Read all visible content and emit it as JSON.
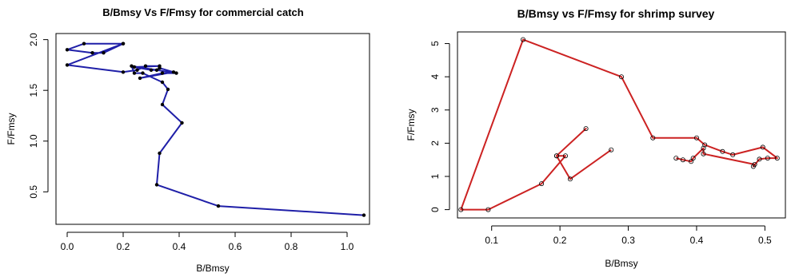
{
  "chart_data": [
    {
      "type": "line",
      "title": "B/Bmsy Vs F/Fmsy for commercial catch",
      "xlabel": "B/Bmsy",
      "ylabel": "F/Fmsy",
      "xlim": [
        -0.04,
        1.08
      ],
      "ylim": [
        0.18,
        2.06
      ],
      "xticks": [
        0.0,
        0.2,
        0.4,
        0.6,
        0.8,
        1.0
      ],
      "xtick_labels": [
        "0.0",
        "0.2",
        "0.4",
        "0.6",
        "0.8",
        "1.0"
      ],
      "yticks": [
        0.5,
        1.0,
        1.5,
        2.0
      ],
      "ytick_labels": [
        "0.5",
        "1.0",
        "1.5",
        "2.0"
      ],
      "marker": "filled-circle",
      "color": "#1f1fa8",
      "grid": false,
      "series": [
        {
          "x": [
            0.2,
            0.06,
            0.0,
            0.09,
            0.13,
            0.2,
            0.0,
            0.2,
            0.25,
            0.28,
            0.33,
            0.24,
            0.3,
            0.32,
            0.33,
            0.38,
            0.26,
            0.34,
            0.39,
            0.23,
            0.24,
            0.27,
            0.34,
            0.36,
            0.34,
            0.41,
            0.33,
            0.32,
            0.54,
            1.06
          ],
          "y": [
            1.96,
            1.96,
            1.9,
            1.87,
            1.87,
            1.96,
            1.75,
            1.68,
            1.7,
            1.74,
            1.74,
            1.73,
            1.7,
            1.7,
            1.72,
            1.68,
            1.62,
            1.67,
            1.67,
            1.74,
            1.67,
            1.67,
            1.58,
            1.51,
            1.36,
            1.18,
            0.88,
            0.57,
            0.36,
            0.27
          ]
        }
      ]
    },
    {
      "type": "line",
      "title": "B/Bmsy vs F/Fmsy for shrimp survey",
      "xlabel": "B/Bmsy",
      "ylabel": "F/Fmsy",
      "xlim": [
        0.05,
        0.53
      ],
      "ylim": [
        -0.25,
        5.35
      ],
      "xticks": [
        0.1,
        0.2,
        0.3,
        0.4,
        0.5
      ],
      "xtick_labels": [
        "0.1",
        "0.2",
        "0.3",
        "0.4",
        "0.5"
      ],
      "yticks": [
        0,
        1,
        2,
        3,
        4,
        5
      ],
      "ytick_labels": [
        "0",
        "1",
        "2",
        "3",
        "4",
        "5"
      ],
      "marker": "open-circle",
      "color": "#cc2222",
      "grid": false,
      "series": [
        {
          "x": [
            0.275,
            0.215,
            0.195,
            0.238,
            0.195,
            0.208,
            0.173,
            0.095,
            0.055,
            0.146,
            0.29,
            0.336,
            0.4,
            0.412,
            0.438,
            0.453,
            0.497,
            0.518,
            0.504,
            0.492,
            0.483,
            0.485,
            0.41,
            0.41,
            0.395,
            0.392,
            0.38,
            0.37
          ],
          "y": [
            1.8,
            0.92,
            1.62,
            2.44,
            1.62,
            1.62,
            0.78,
            0.0,
            0.0,
            5.12,
            4.0,
            2.16,
            2.16,
            1.95,
            1.75,
            1.65,
            1.88,
            1.55,
            1.55,
            1.52,
            1.3,
            1.36,
            1.68,
            1.85,
            1.55,
            1.45,
            1.5,
            1.55
          ]
        }
      ]
    }
  ]
}
